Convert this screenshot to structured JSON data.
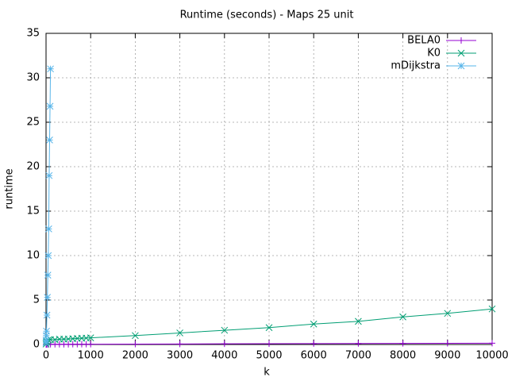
{
  "chart_data": {
    "type": "line",
    "title": "Runtime (seconds) - Maps 25 unit",
    "x_label": "k",
    "y_label": "runtime",
    "xlim": [
      0,
      10000
    ],
    "xticks": [
      0,
      1000,
      2000,
      3000,
      4000,
      5000,
      6000,
      7000,
      8000,
      9000,
      10000
    ],
    "ylim": [
      0,
      35
    ],
    "yticks": [
      0,
      5,
      10,
      15,
      20,
      25,
      30,
      35
    ],
    "grid": true,
    "legend": "top-right",
    "series": [
      {
        "name": "BELA0",
        "color": "#9400d3",
        "marker": "plus",
        "x": [
          1,
          10,
          20,
          50,
          100,
          200,
          300,
          400,
          500,
          600,
          700,
          800,
          900,
          1000,
          2000,
          3000,
          4000,
          5000,
          6000,
          7000,
          8000,
          9000,
          10000
        ],
        "values": [
          0.01,
          0.01,
          0.01,
          0.01,
          0.02,
          0.02,
          0.02,
          0.02,
          0.02,
          0.03,
          0.03,
          0.03,
          0.03,
          0.03,
          0.05,
          0.06,
          0.08,
          0.09,
          0.1,
          0.11,
          0.12,
          0.13,
          0.15
        ]
      },
      {
        "name": "K0",
        "color": "#009e73",
        "marker": "cross",
        "x": [
          1,
          10,
          20,
          50,
          100,
          200,
          300,
          400,
          500,
          600,
          700,
          800,
          900,
          1000,
          2000,
          3000,
          4000,
          5000,
          6000,
          7000,
          8000,
          9000,
          10000
        ],
        "values": [
          0.05,
          0.3,
          0.4,
          0.5,
          0.55,
          0.55,
          0.6,
          0.6,
          0.62,
          0.65,
          0.68,
          0.7,
          0.72,
          0.75,
          1.0,
          1.3,
          1.6,
          1.9,
          2.3,
          2.6,
          3.1,
          3.5,
          4.0
        ]
      },
      {
        "name": "mDijkstra",
        "color": "#56b4e9",
        "marker": "star",
        "x": [
          1,
          2,
          5,
          10,
          20,
          30,
          40,
          50,
          60,
          70,
          80,
          90,
          100
        ],
        "values": [
          0.2,
          0.5,
          1.0,
          1.5,
          3.3,
          5.3,
          7.8,
          10,
          13,
          19,
          23,
          26.8,
          31
        ]
      }
    ]
  }
}
